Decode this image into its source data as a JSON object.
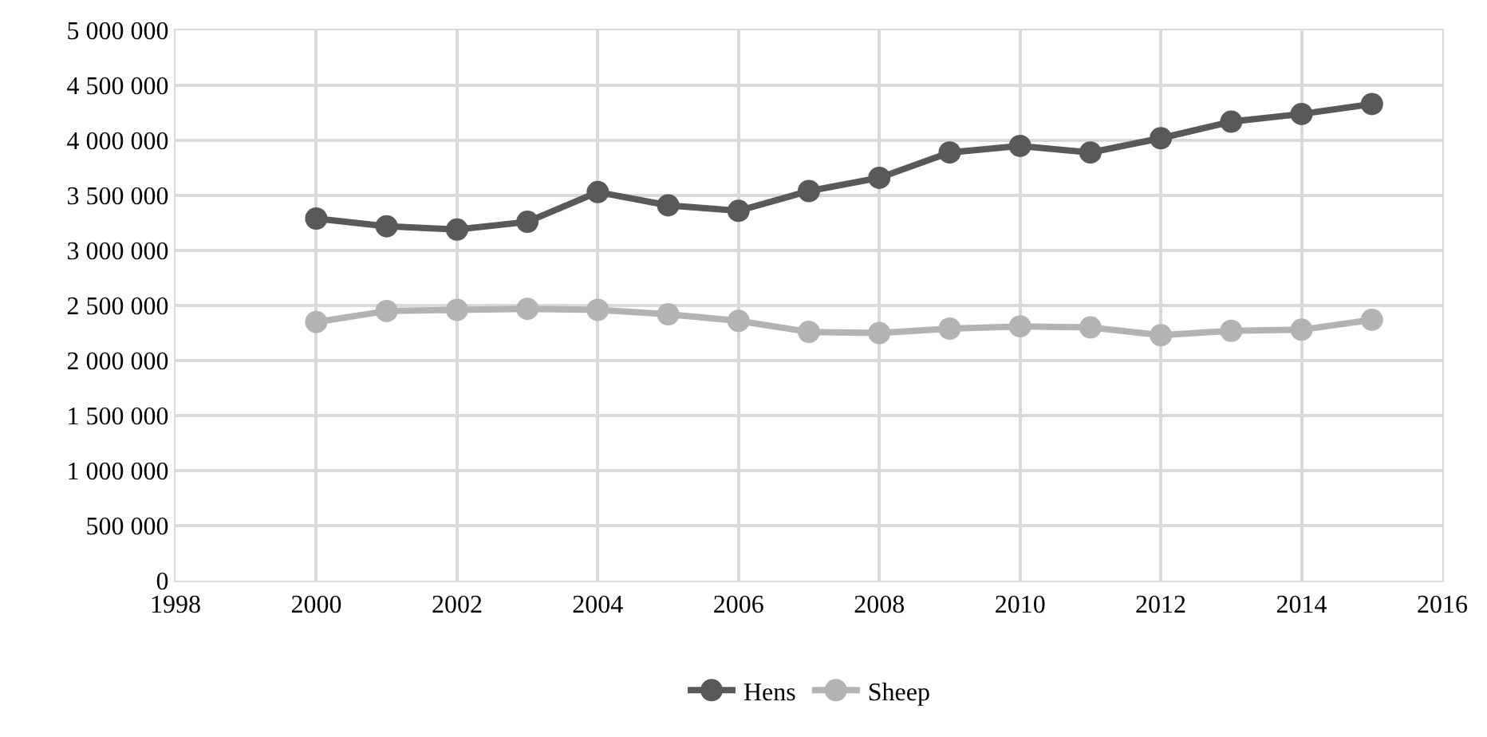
{
  "chart_data": {
    "type": "line",
    "x": [
      2000,
      2001,
      2002,
      2003,
      2004,
      2005,
      2006,
      2007,
      2008,
      2009,
      2010,
      2011,
      2012,
      2013,
      2014,
      2015
    ],
    "series": [
      {
        "name": "Hens",
        "color": "#595959",
        "values": [
          3290000,
          3220000,
          3190000,
          3260000,
          3530000,
          3410000,
          3360000,
          3540000,
          3660000,
          3890000,
          3950000,
          3890000,
          4020000,
          4170000,
          4240000,
          4330000
        ]
      },
      {
        "name": "Sheep",
        "color": "#b3b3b3",
        "values": [
          2350000,
          2450000,
          2460000,
          2470000,
          2460000,
          2420000,
          2360000,
          2260000,
          2250000,
          2290000,
          2310000,
          2300000,
          2230000,
          2270000,
          2280000,
          2370000
        ]
      }
    ],
    "xlim": [
      1998,
      2016
    ],
    "xticks": [
      1998,
      2000,
      2002,
      2004,
      2006,
      2008,
      2010,
      2012,
      2014,
      2016
    ],
    "ylim": [
      0,
      5000000
    ],
    "yticks": [
      {
        "value": 0,
        "label": "0"
      },
      {
        "value": 500000,
        "label": "500 000"
      },
      {
        "value": 1000000,
        "label": "1 000 000"
      },
      {
        "value": 1500000,
        "label": "1 500 000"
      },
      {
        "value": 2000000,
        "label": "2 000 000"
      },
      {
        "value": 2500000,
        "label": "2 500 000"
      },
      {
        "value": 3000000,
        "label": "3 000 000"
      },
      {
        "value": 3500000,
        "label": "3 500 000"
      },
      {
        "value": 4000000,
        "label": "4 000 000"
      },
      {
        "value": 4500000,
        "label": "4 500 000"
      },
      {
        "value": 5000000,
        "label": "5 000 000"
      }
    ],
    "grid": true,
    "legend": "bottom",
    "marker": "circle",
    "line_style": "solid"
  }
}
